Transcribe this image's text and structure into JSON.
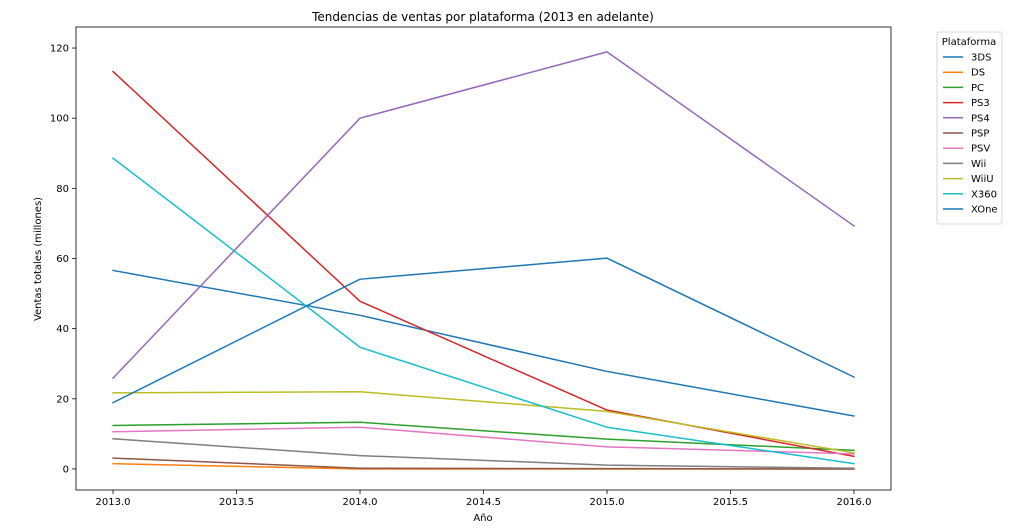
{
  "chart_data": {
    "type": "line",
    "title": "Tendencias de ventas por plataforma (2013 en adelante)",
    "xlabel": "Año",
    "ylabel": "Ventas totales (millones)",
    "x": [
      2013,
      2014,
      2015,
      2016
    ],
    "xlim": [
      2012.85,
      2016.15
    ],
    "ylim": [
      -6,
      126
    ],
    "xticks": [
      2013.0,
      2013.5,
      2014.0,
      2014.5,
      2015.0,
      2015.5,
      2016.0
    ],
    "xtick_labels": [
      "2013.0",
      "2013.5",
      "2014.0",
      "2014.5",
      "2015.0",
      "2015.5",
      "2016.0"
    ],
    "yticks": [
      0,
      20,
      40,
      60,
      80,
      100,
      120
    ],
    "ytick_labels": [
      "0",
      "20",
      "40",
      "60",
      "80",
      "100",
      "120"
    ],
    "grid": false,
    "legend": {
      "title": "Plataforma",
      "position": "outside-top-right"
    },
    "series": [
      {
        "name": "3DS",
        "color": "#1f77b4",
        "values": [
          56.6,
          43.8,
          27.8,
          15.1
        ]
      },
      {
        "name": "DS",
        "color": "#ff7f0e",
        "values": [
          1.5,
          0.0,
          0.0,
          0.0
        ]
      },
      {
        "name": "PC",
        "color": "#2ca02c",
        "values": [
          12.4,
          13.3,
          8.5,
          5.3
        ]
      },
      {
        "name": "PS3",
        "color": "#d62728",
        "values": [
          113.3,
          47.8,
          16.8,
          3.6
        ]
      },
      {
        "name": "PS4",
        "color": "#9467bd",
        "values": [
          25.9,
          100.0,
          118.9,
          69.3
        ]
      },
      {
        "name": "PSP",
        "color": "#8c564b",
        "values": [
          3.1,
          0.2,
          0.1,
          0.0
        ]
      },
      {
        "name": "PSV",
        "color": "#e377c2",
        "values": [
          10.6,
          11.9,
          6.3,
          4.3
        ]
      },
      {
        "name": "Wii",
        "color": "#7f7f7f",
        "values": [
          8.6,
          3.8,
          1.1,
          0.2
        ]
      },
      {
        "name": "WiiU",
        "color": "#bcbd22",
        "values": [
          21.7,
          22.0,
          16.4,
          4.6
        ]
      },
      {
        "name": "X360",
        "color": "#17becf",
        "values": [
          88.6,
          34.7,
          11.9,
          1.5
        ]
      },
      {
        "name": "XOne",
        "color": "#1f77b4",
        "values": [
          18.9,
          54.1,
          60.1,
          26.2
        ]
      }
    ]
  }
}
